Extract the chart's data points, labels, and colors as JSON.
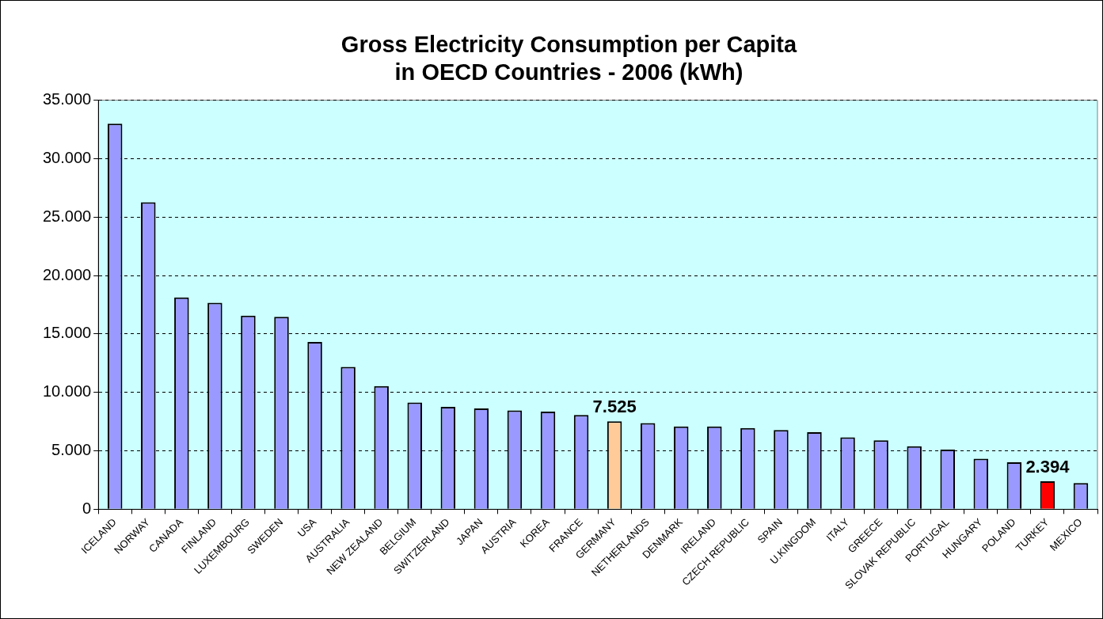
{
  "chart_data": {
    "type": "bar",
    "title": "Gross Electricity Consumption per Capita\nin OECD Countries - 2006 (kWh)",
    "categories": [
      "ICELAND",
      "NORWAY",
      "CANADA",
      "FINLAND",
      "LUXEMBOURG",
      "SWEDEN",
      "USA",
      "AUSTRALIA",
      "NEW ZEALAND",
      "BELGIUM",
      "SWITZERLAND",
      "JAPAN",
      "AUSTRIA",
      "KOREA",
      "FRANCE",
      "GERMANY",
      "NETHERLANDS",
      "DENMARK",
      "IRELAND",
      "CZECH REPUBLIC",
      "SPAIN",
      "U.KINGDOM",
      "ITALY",
      "GREECE",
      "SLOVAK REPUBLIC",
      "PORTUGAL",
      "HUNGARY",
      "POLAND",
      "TURKEY",
      "MEXICO"
    ],
    "values": [
      33000,
      26270,
      18130,
      17670,
      16570,
      16470,
      14320,
      12180,
      10540,
      9140,
      8760,
      8630,
      8450,
      8350,
      8070,
      7525,
      7370,
      7090,
      7090,
      6950,
      6780,
      6600,
      6160,
      5900,
      5390,
      5100,
      4330,
      4020,
      2394,
      2240
    ],
    "colors": [
      "#9999ff",
      "#9999ff",
      "#9999ff",
      "#9999ff",
      "#9999ff",
      "#9999ff",
      "#9999ff",
      "#9999ff",
      "#9999ff",
      "#9999ff",
      "#9999ff",
      "#9999ff",
      "#9999ff",
      "#9999ff",
      "#9999ff",
      "#ffcc99",
      "#9999ff",
      "#9999ff",
      "#9999ff",
      "#9999ff",
      "#9999ff",
      "#9999ff",
      "#9999ff",
      "#9999ff",
      "#9999ff",
      "#9999ff",
      "#9999ff",
      "#9999ff",
      "#ff0000",
      "#9999ff"
    ],
    "value_labels": [
      null,
      null,
      null,
      null,
      null,
      null,
      null,
      null,
      null,
      null,
      null,
      null,
      null,
      null,
      null,
      "7.525",
      null,
      null,
      null,
      null,
      null,
      null,
      null,
      null,
      null,
      null,
      null,
      null,
      "2.394",
      null
    ],
    "ylim": [
      0,
      35000
    ],
    "yticks": [
      0,
      {
        "value": 5000,
        "label": "5.000"
      },
      {
        "value": 10000,
        "label": "10.000"
      },
      {
        "value": 15000,
        "label": "15.000"
      },
      {
        "value": 20000,
        "label": "20.000"
      },
      {
        "value": 25000,
        "label": "25.000"
      },
      {
        "value": 30000,
        "label": "30.000"
      },
      {
        "value": 35000,
        "label": "35.000"
      }
    ],
    "grid": "y",
    "legend": false
  }
}
